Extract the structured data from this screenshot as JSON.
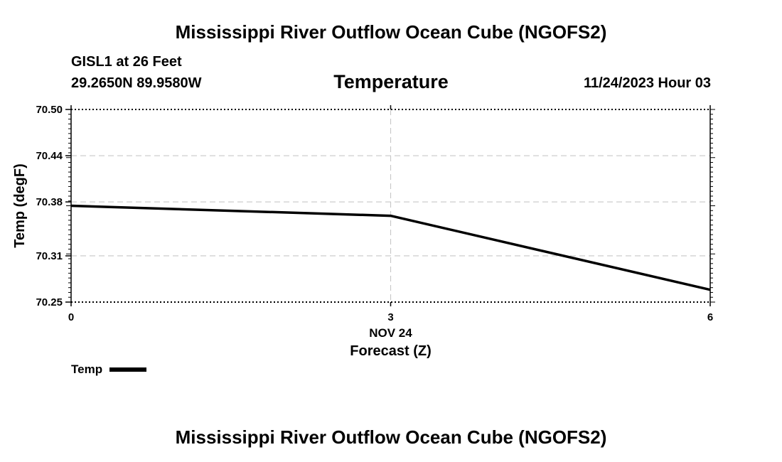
{
  "header": {
    "title": "Mississippi River Outflow Ocean Cube (NGOFS2)",
    "station": "GISL1 at 26 Feet",
    "coords": "29.2650N  89.9580W",
    "variable": "Temperature",
    "datetime": "11/24/2023 Hour 03"
  },
  "footer": {
    "title": "Mississippi River Outflow Ocean Cube (NGOFS2)"
  },
  "chart_data": {
    "type": "line",
    "title": "Temperature",
    "xlabel": "Forecast (Z)",
    "xsublabel": "NOV 24",
    "ylabel": "Temp (degF)",
    "x": [
      0,
      3,
      6
    ],
    "xlim": [
      0,
      6
    ],
    "ylim": [
      70.25,
      70.5
    ],
    "x_ticks": [
      0,
      3,
      6
    ],
    "x_tick_labels": [
      "0",
      "3",
      "6"
    ],
    "y_ticks": [
      70.25,
      70.31,
      70.38,
      70.44,
      70.5
    ],
    "y_tick_labels": [
      "70.25",
      "70.31",
      "70.38",
      "70.44",
      "70.50"
    ],
    "grid": true,
    "series": [
      {
        "name": "Temp",
        "values": [
          70.375,
          70.362,
          70.266
        ],
        "color": "#000000"
      }
    ]
  },
  "legend": {
    "label": "Temp",
    "color": "#000000"
  }
}
